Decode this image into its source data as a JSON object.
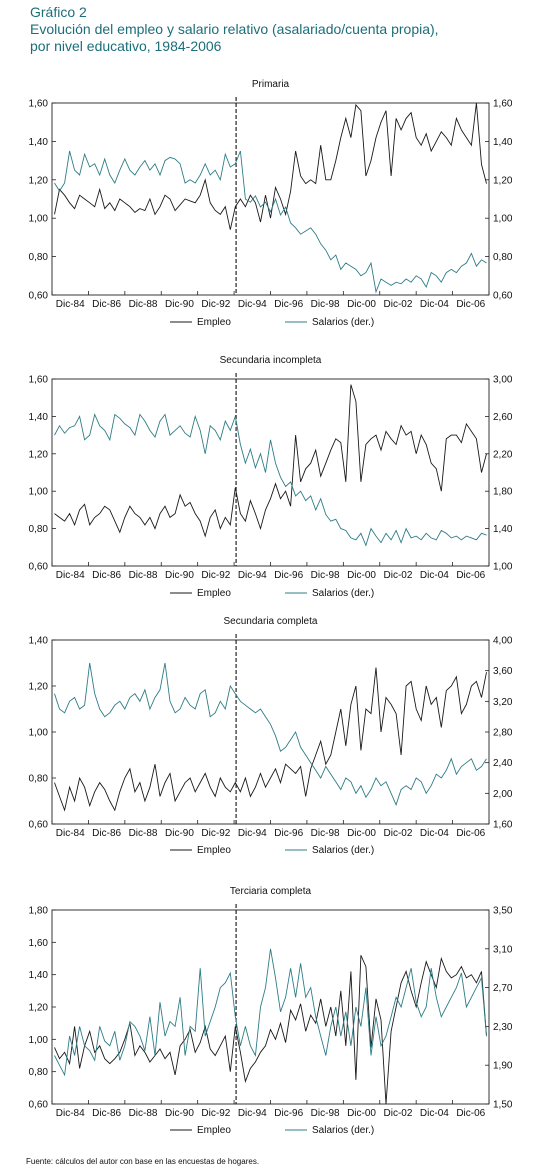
{
  "header": {
    "figure_number": "Gráfico 2",
    "title_lines": [
      "Evolución del empleo y salario relativo (asalariado/cuenta propia),",
      "por nivel educativo, 1984-2006"
    ]
  },
  "footnote": "Fuente: cálculos del autor con base en las encuestas de hogares.",
  "colors": {
    "empleo": "#1a1a1a",
    "salarios": "#2e7d87",
    "axis": "#222222"
  },
  "chart_data": [
    {
      "type": "line",
      "title": "Primaria",
      "x_tick_labels": [
        "Dic-84",
        "Dic-86",
        "Dic-88",
        "Dic-90",
        "Dic-92",
        "Dic-94",
        "Dic-96",
        "Dic-98",
        "Dic-00",
        "Dic-02",
        "Dic-04",
        "Dic-06"
      ],
      "break_label": "Dic-94",
      "legend": [
        "Empleo",
        "Salarios (der.)"
      ],
      "left_axis": {
        "ylim": [
          0.6,
          1.6
        ],
        "ticks": [
          "0,60",
          "0,80",
          "1,00",
          "1,20",
          "1,40",
          "1,60"
        ]
      },
      "right_axis": {
        "ylim": [
          0.6,
          1.8
        ],
        "ticks": [
          "0,60",
          "0,80",
          "1,00",
          "1,20",
          "1,40",
          "1,60"
        ]
      },
      "series": [
        {
          "name": "Empleo",
          "axis": "left",
          "values": [
            1.02,
            1.15,
            1.12,
            1.08,
            1.05,
            1.12,
            1.1,
            1.08,
            1.06,
            1.15,
            1.05,
            1.08,
            1.04,
            1.1,
            1.08,
            1.06,
            1.03,
            1.05,
            1.04,
            1.1,
            1.02,
            1.06,
            1.12,
            1.1,
            1.04,
            1.07,
            1.1,
            1.09,
            1.08,
            1.12,
            1.2,
            1.08,
            1.04,
            1.02,
            1.06,
            0.94,
            1.06,
            1.1,
            1.06,
            1.12,
            1.08,
            0.98,
            1.12,
            1.0,
            1.16,
            1.1,
            1.02,
            1.14,
            1.35,
            1.22,
            1.18,
            1.2,
            1.18,
            1.38,
            1.2,
            1.2,
            1.3,
            1.42,
            1.52,
            1.42,
            1.59,
            1.56,
            1.22,
            1.3,
            1.42,
            1.5,
            1.56,
            1.22,
            1.52,
            1.46,
            1.52,
            1.55,
            1.42,
            1.38,
            1.44,
            1.35,
            1.4,
            1.45,
            1.42,
            1.38,
            1.52,
            1.46,
            1.42,
            1.38,
            1.6,
            1.28,
            1.18
          ]
        },
        {
          "name": "Salarios (der.)",
          "axis": "right",
          "values": [
            1.3,
            1.25,
            1.3,
            1.5,
            1.38,
            1.35,
            1.48,
            1.4,
            1.42,
            1.35,
            1.45,
            1.35,
            1.3,
            1.38,
            1.45,
            1.38,
            1.35,
            1.4,
            1.44,
            1.38,
            1.42,
            1.35,
            1.44,
            1.46,
            1.45,
            1.42,
            1.3,
            1.32,
            1.3,
            1.35,
            1.42,
            1.35,
            1.38,
            1.32,
            1.48,
            1.4,
            1.42,
            1.5,
            1.2,
            1.18,
            1.22,
            1.15,
            1.18,
            1.12,
            1.2,
            1.1,
            1.15,
            1.05,
            1.02,
            0.98,
            1.0,
            1.02,
            0.98,
            0.92,
            0.88,
            0.82,
            0.85,
            0.76,
            0.8,
            0.78,
            0.76,
            0.72,
            0.74,
            0.8,
            0.62,
            0.7,
            0.68,
            0.66,
            0.68,
            0.67,
            0.7,
            0.68,
            0.72,
            0.7,
            0.65,
            0.74,
            0.72,
            0.68,
            0.74,
            0.76,
            0.74,
            0.78,
            0.8,
            0.86,
            0.78,
            0.82,
            0.8
          ]
        }
      ]
    },
    {
      "type": "line",
      "title": "Secundaria incompleta",
      "x_tick_labels": [
        "Dic-84",
        "Dic-86",
        "Dic-88",
        "Dic-90",
        "Dic-92",
        "Dic-94",
        "Dic-96",
        "Dic-98",
        "Dic-00",
        "Dic-02",
        "Dic-04",
        "Dic-06"
      ],
      "break_label": "Dic-94",
      "legend": [
        "Empleo",
        "Salarios (der.)"
      ],
      "left_axis": {
        "ylim": [
          0.6,
          1.6
        ],
        "ticks": [
          "0,60",
          "0,80",
          "1,00",
          "1,20",
          "1,40",
          "1,60"
        ]
      },
      "right_axis": {
        "ylim": [
          1.0,
          3.0
        ],
        "ticks": [
          "1,00",
          "1,40",
          "1,80",
          "2,20",
          "2,60",
          "3,00"
        ]
      },
      "series": [
        {
          "name": "Empleo",
          "axis": "left",
          "values": [
            0.88,
            0.86,
            0.84,
            0.88,
            0.82,
            0.9,
            0.93,
            0.82,
            0.86,
            0.88,
            0.92,
            0.9,
            0.84,
            0.78,
            0.86,
            0.92,
            0.88,
            0.86,
            0.82,
            0.86,
            0.8,
            0.88,
            0.92,
            0.86,
            0.88,
            0.98,
            0.92,
            0.94,
            0.88,
            0.84,
            0.76,
            0.86,
            0.9,
            0.8,
            0.86,
            0.82,
            1.02,
            0.88,
            0.84,
            0.95,
            0.88,
            0.8,
            0.9,
            0.96,
            1.04,
            0.96,
            1.0,
            0.92,
            1.3,
            1.05,
            1.12,
            1.15,
            1.22,
            1.08,
            1.15,
            1.22,
            1.28,
            1.26,
            1.05,
            1.57,
            1.48,
            1.05,
            1.25,
            1.28,
            1.3,
            1.22,
            1.32,
            1.28,
            1.25,
            1.35,
            1.3,
            1.32,
            1.2,
            1.3,
            1.25,
            1.15,
            1.12,
            1.0,
            1.28,
            1.3,
            1.3,
            1.26,
            1.36,
            1.32,
            1.28,
            1.1,
            1.2
          ]
        },
        {
          "name": "Salarios (der.)",
          "axis": "right",
          "values": [
            2.4,
            2.5,
            2.42,
            2.48,
            2.5,
            2.6,
            2.35,
            2.4,
            2.62,
            2.5,
            2.45,
            2.35,
            2.62,
            2.58,
            2.52,
            2.48,
            2.4,
            2.62,
            2.55,
            2.45,
            2.38,
            2.55,
            2.62,
            2.4,
            2.45,
            2.5,
            2.42,
            2.38,
            2.6,
            2.45,
            2.2,
            2.5,
            2.45,
            2.35,
            2.55,
            2.45,
            2.6,
            2.3,
            2.1,
            2.25,
            2.05,
            2.2,
            2.0,
            2.35,
            2.1,
            1.95,
            1.85,
            1.9,
            1.75,
            1.8,
            1.7,
            1.75,
            1.6,
            1.72,
            1.55,
            1.48,
            1.5,
            1.4,
            1.38,
            1.3,
            1.28,
            1.35,
            1.22,
            1.4,
            1.32,
            1.25,
            1.35,
            1.28,
            1.38,
            1.25,
            1.4,
            1.3,
            1.32,
            1.28,
            1.35,
            1.3,
            1.28,
            1.38,
            1.35,
            1.3,
            1.32,
            1.28,
            1.32,
            1.3,
            1.28,
            1.35,
            1.33
          ]
        }
      ]
    },
    {
      "type": "line",
      "title": "Secundaria completa",
      "x_tick_labels": [
        "Dic-84",
        "Dic-86",
        "Dic-88",
        "Dic-90",
        "Dic-92",
        "Dic-94",
        "Dic-96",
        "Dic-98",
        "Dic-00",
        "Dic-02",
        "Dic-04",
        "Dic-06"
      ],
      "break_label": "Dic-94",
      "legend": [
        "Empleo",
        "Salarios (der.)"
      ],
      "left_axis": {
        "ylim": [
          0.6,
          1.4
        ],
        "ticks": [
          "0,60",
          "0,80",
          "1,00",
          "1,20",
          "1,40"
        ]
      },
      "right_axis": {
        "ylim": [
          1.6,
          4.0
        ],
        "ticks": [
          "1,60",
          "2,00",
          "2,40",
          "2,80",
          "3,20",
          "3,60",
          "4,00"
        ]
      },
      "series": [
        {
          "name": "Empleo",
          "axis": "left",
          "values": [
            0.78,
            0.72,
            0.66,
            0.76,
            0.7,
            0.8,
            0.76,
            0.68,
            0.74,
            0.78,
            0.75,
            0.7,
            0.66,
            0.74,
            0.8,
            0.84,
            0.74,
            0.78,
            0.7,
            0.76,
            0.86,
            0.72,
            0.78,
            0.82,
            0.7,
            0.74,
            0.78,
            0.8,
            0.74,
            0.78,
            0.82,
            0.76,
            0.72,
            0.8,
            0.76,
            0.74,
            0.78,
            0.74,
            0.8,
            0.72,
            0.76,
            0.82,
            0.76,
            0.8,
            0.84,
            0.78,
            0.86,
            0.84,
            0.82,
            0.85,
            0.72,
            0.84,
            0.9,
            0.96,
            0.86,
            0.9,
            1.0,
            1.1,
            0.94,
            1.12,
            1.2,
            0.92,
            1.1,
            1.08,
            1.28,
            1.0,
            1.15,
            1.12,
            1.08,
            0.9,
            1.2,
            1.22,
            1.1,
            1.05,
            1.2,
            1.12,
            1.15,
            1.02,
            1.18,
            1.2,
            1.24,
            1.08,
            1.12,
            1.2,
            1.22,
            1.15,
            1.26
          ]
        },
        {
          "name": "Salarios (der.)",
          "axis": "right",
          "values": [
            3.3,
            3.1,
            3.05,
            3.2,
            3.25,
            3.1,
            3.15,
            3.7,
            3.3,
            3.1,
            3.0,
            3.05,
            3.15,
            3.2,
            3.1,
            3.25,
            3.3,
            3.2,
            3.35,
            3.1,
            3.25,
            3.35,
            3.7,
            3.2,
            3.05,
            3.1,
            3.25,
            3.15,
            3.1,
            3.3,
            3.35,
            3.0,
            3.05,
            3.2,
            3.1,
            3.4,
            3.3,
            3.2,
            3.15,
            3.1,
            3.05,
            3.1,
            3.0,
            2.9,
            2.75,
            2.55,
            2.6,
            2.7,
            2.8,
            2.6,
            2.5,
            2.4,
            2.3,
            2.2,
            2.35,
            2.25,
            2.15,
            2.05,
            2.2,
            2.15,
            2.0,
            2.1,
            1.95,
            2.05,
            2.2,
            2.1,
            2.15,
            2.0,
            1.85,
            2.05,
            2.1,
            2.05,
            2.2,
            2.15,
            2.0,
            2.1,
            2.25,
            2.2,
            2.3,
            2.45,
            2.25,
            2.35,
            2.4,
            2.45,
            2.3,
            2.35,
            2.45
          ]
        }
      ]
    },
    {
      "type": "line",
      "title": "Terciaria completa",
      "x_tick_labels": [
        "Dic-84",
        "Dic-86",
        "Dic-88",
        "Dic-90",
        "Dic-92",
        "Dic-94",
        "Dic-96",
        "Dic-98",
        "Dic-00",
        "Dic-02",
        "Dic-04",
        "Dic-06"
      ],
      "break_label": "Dic-94",
      "legend": [
        "Empleo",
        "Salarios (der.)"
      ],
      "left_axis": {
        "ylim": [
          0.6,
          1.8
        ],
        "ticks": [
          "0,60",
          "0,80",
          "1,00",
          "1,20",
          "1,40",
          "1,60",
          "1,80"
        ]
      },
      "right_axis": {
        "ylim": [
          1.5,
          3.5
        ],
        "ticks": [
          "1,50",
          "1,90",
          "2,30",
          "2,70",
          "3,10",
          "3,50"
        ]
      },
      "series": [
        {
          "name": "Empleo",
          "axis": "left",
          "values": [
            0.95,
            0.88,
            0.92,
            0.85,
            1.08,
            0.82,
            0.96,
            1.05,
            0.92,
            0.96,
            0.88,
            0.85,
            0.88,
            0.92,
            1.0,
            1.1,
            0.9,
            0.96,
            0.92,
            0.86,
            0.9,
            0.94,
            0.88,
            0.92,
            0.78,
            0.96,
            1.0,
            1.06,
            0.92,
            0.98,
            1.08,
            0.94,
            0.9,
            0.96,
            1.02,
            0.8,
            1.08,
            0.92,
            0.74,
            0.82,
            0.86,
            0.92,
            0.96,
            1.06,
            1.0,
            1.1,
            0.98,
            1.18,
            1.12,
            1.22,
            1.05,
            1.15,
            1.1,
            1.25,
            1.08,
            1.2,
            1.02,
            1.3,
            0.96,
            1.42,
            0.75,
            1.52,
            1.45,
            0.95,
            1.25,
            1.12,
            0.6,
            1.05,
            1.2,
            1.35,
            1.42,
            1.3,
            1.2,
            1.35,
            1.48,
            1.4,
            1.32,
            1.5,
            1.42,
            1.38,
            1.4,
            1.45,
            1.38,
            1.4,
            1.35,
            1.42,
            1.02
          ]
        },
        {
          "name": "Salarios (der.)",
          "axis": "right",
          "values": [
            2.0,
            1.9,
            1.8,
            2.2,
            2.0,
            2.3,
            2.1,
            2.05,
            1.95,
            2.3,
            2.15,
            2.1,
            2.25,
            1.95,
            2.1,
            2.35,
            2.3,
            2.2,
            2.05,
            2.4,
            2.0,
            2.55,
            2.2,
            2.35,
            2.3,
            2.6,
            2.0,
            2.3,
            2.25,
            2.9,
            2.2,
            2.35,
            2.5,
            2.7,
            2.75,
            2.85,
            2.4,
            2.1,
            2.3,
            2.1,
            2.0,
            2.5,
            2.7,
            3.1,
            2.8,
            2.45,
            2.6,
            2.9,
            2.6,
            2.95,
            2.6,
            2.7,
            2.4,
            2.2,
            2.0,
            2.3,
            2.5,
            2.2,
            2.45,
            2.1,
            2.5,
            2.3,
            2.7,
            2.0,
            2.4,
            2.1,
            2.2,
            2.4,
            2.6,
            2.5,
            2.7,
            2.9,
            2.55,
            2.4,
            2.5,
            2.9,
            2.6,
            2.4,
            2.5,
            2.6,
            2.7,
            2.85,
            2.5,
            2.6,
            2.7,
            2.8,
            2.2
          ]
        }
      ]
    }
  ]
}
